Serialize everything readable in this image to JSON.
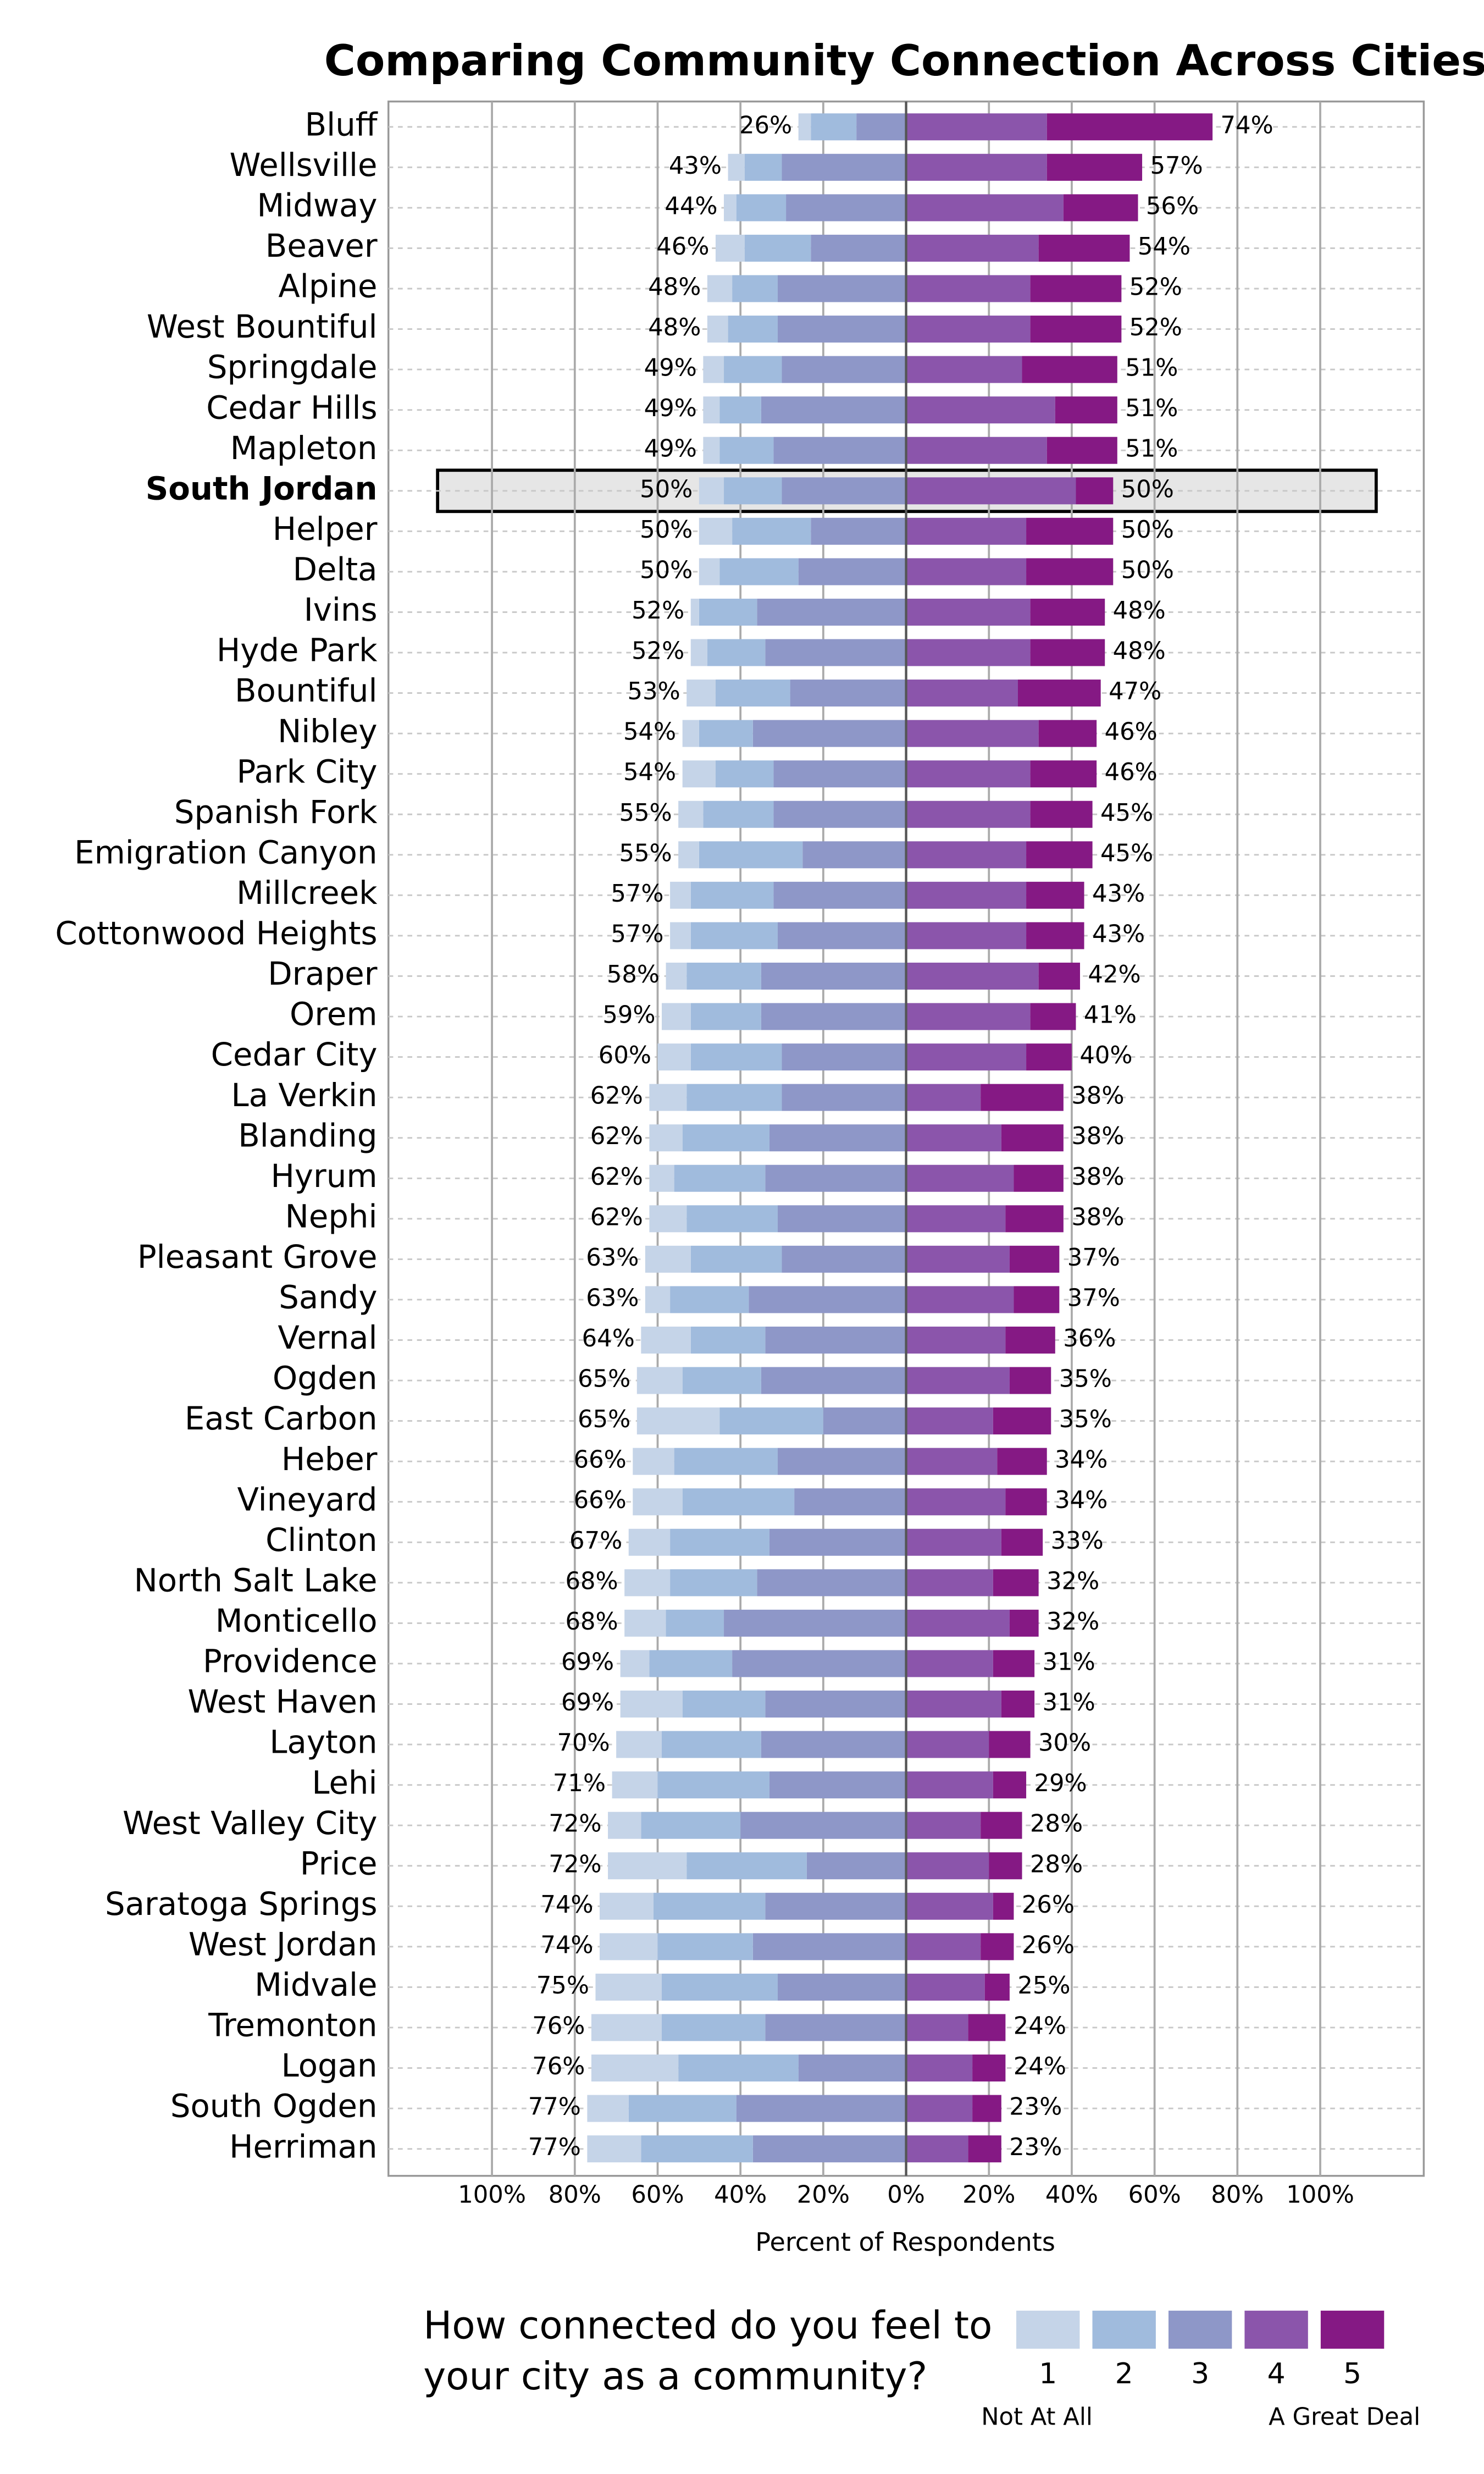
{
  "chart_data": {
    "type": "diverging-bar",
    "title": "Comparing Community Connection Across Cities",
    "x_label": "Percent of Respondents",
    "legend_title": [
      "How connected do you feel to",
      "your city as a community?"
    ],
    "legend_low": "Not At All",
    "legend_high": "A Great Deal",
    "highlight_index": 9,
    "grid": true,
    "xlim": [
      -125,
      125
    ],
    "xticks": [
      {
        "value": -100,
        "label": "100%"
      },
      {
        "value": -80,
        "label": "80%"
      },
      {
        "value": -60,
        "label": "60%"
      },
      {
        "value": -40,
        "label": "40%"
      },
      {
        "value": -20,
        "label": "20%"
      },
      {
        "value": 0,
        "label": "0%"
      },
      {
        "value": 20,
        "label": "20%"
      },
      {
        "value": 40,
        "label": "40%"
      },
      {
        "value": 60,
        "label": "60%"
      },
      {
        "value": 80,
        "label": "80%"
      },
      {
        "value": 100,
        "label": "100%"
      }
    ],
    "categories": [
      "Bluff",
      "Wellsville",
      "Midway",
      "Beaver",
      "Alpine",
      "West Bountiful",
      "Springdale",
      "Cedar Hills",
      "Mapleton",
      "South Jordan",
      "Helper",
      "Delta",
      "Ivins",
      "Hyde Park",
      "Bountiful",
      "Nibley",
      "Park City",
      "Spanish Fork",
      "Emigration Canyon",
      "Millcreek",
      "Cottonwood Heights",
      "Draper",
      "Orem",
      "Cedar City",
      "La Verkin",
      "Blanding",
      "Hyrum",
      "Nephi",
      "Pleasant Grove",
      "Sandy",
      "Vernal",
      "Ogden",
      "East Carbon",
      "Heber",
      "Vineyard",
      "Clinton",
      "North Salt Lake",
      "Monticello",
      "Providence",
      "West Haven",
      "Layton",
      "Lehi",
      "West Valley City",
      "Price",
      "Saratoga Springs",
      "West Jordan",
      "Midvale",
      "Tremonton",
      "Logan",
      "South Ogden",
      "Herriman"
    ],
    "series": [
      {
        "name": "1",
        "color": "#c5d4e8",
        "side": "left",
        "values": [
          3,
          4,
          3,
          7,
          6,
          5,
          5,
          4,
          4,
          6,
          8,
          5,
          2,
          4,
          7,
          4,
          8,
          6,
          5,
          5,
          5,
          5,
          7,
          8,
          9,
          8,
          6,
          9,
          11,
          6,
          12,
          11,
          20,
          10,
          12,
          10,
          11,
          10,
          7,
          15,
          11,
          11,
          8,
          19,
          13,
          14,
          16,
          17,
          21,
          10,
          13
        ]
      },
      {
        "name": "2",
        "color": "#a0bbdd",
        "side": "left",
        "values": [
          11,
          9,
          12,
          16,
          11,
          12,
          14,
          10,
          13,
          14,
          19,
          19,
          14,
          14,
          18,
          13,
          14,
          17,
          25,
          20,
          21,
          18,
          17,
          22,
          23,
          21,
          22,
          22,
          22,
          19,
          18,
          19,
          25,
          25,
          27,
          24,
          21,
          14,
          20,
          20,
          24,
          27,
          24,
          29,
          27,
          23,
          28,
          25,
          29,
          26,
          27
        ]
      },
      {
        "name": "3",
        "color": "#8e97c8",
        "side": "left",
        "values": [
          12,
          30,
          29,
          23,
          31,
          31,
          30,
          35,
          32,
          30,
          23,
          26,
          36,
          34,
          28,
          37,
          32,
          32,
          25,
          32,
          31,
          35,
          35,
          30,
          30,
          33,
          34,
          31,
          30,
          38,
          34,
          35,
          20,
          31,
          27,
          33,
          36,
          44,
          42,
          34,
          35,
          33,
          40,
          24,
          34,
          37,
          31,
          34,
          26,
          41,
          37
        ]
      },
      {
        "name": "4",
        "color": "#8b55ab",
        "side": "right",
        "values": [
          34,
          34,
          38,
          32,
          30,
          30,
          28,
          36,
          34,
          41,
          29,
          29,
          30,
          30,
          27,
          32,
          30,
          30,
          29,
          29,
          29,
          32,
          30,
          29,
          18,
          23,
          26,
          24,
          25,
          26,
          24,
          25,
          21,
          22,
          24,
          23,
          21,
          25,
          21,
          23,
          20,
          21,
          18,
          20,
          21,
          18,
          19,
          15,
          16,
          16,
          15
        ]
      },
      {
        "name": "5",
        "color": "#851984",
        "side": "right",
        "values": [
          40,
          23,
          18,
          22,
          22,
          22,
          23,
          15,
          17,
          9,
          21,
          21,
          18,
          18,
          20,
          14,
          16,
          15,
          16,
          14,
          14,
          10,
          11,
          11,
          20,
          15,
          12,
          14,
          12,
          11,
          12,
          10,
          14,
          12,
          10,
          10,
          11,
          7,
          10,
          8,
          10,
          8,
          10,
          8,
          5,
          8,
          6,
          9,
          8,
          7,
          8
        ]
      }
    ],
    "left_totals": {
      "values": [
        26,
        43,
        44,
        46,
        48,
        48,
        49,
        49,
        49,
        50,
        50,
        50,
        52,
        52,
        53,
        54,
        54,
        55,
        55,
        57,
        57,
        58,
        59,
        60,
        62,
        62,
        62,
        62,
        63,
        63,
        64,
        65,
        65,
        66,
        66,
        67,
        68,
        68,
        69,
        69,
        70,
        71,
        72,
        72,
        74,
        74,
        75,
        76,
        76,
        77,
        77
      ],
      "value_labels": [
        "26%",
        "43%",
        "44%",
        "46%",
        "48%",
        "48%",
        "49%",
        "49%",
        "49%",
        "50%",
        "50%",
        "50%",
        "52%",
        "52%",
        "53%",
        "54%",
        "54%",
        "55%",
        "55%",
        "57%",
        "57%",
        "58%",
        "59%",
        "60%",
        "62%",
        "62%",
        "62%",
        "62%",
        "63%",
        "63%",
        "64%",
        "65%",
        "65%",
        "66%",
        "66%",
        "67%",
        "68%",
        "68%",
        "69%",
        "69%",
        "70%",
        "71%",
        "72%",
        "72%",
        "74%",
        "74%",
        "75%",
        "76%",
        "76%",
        "77%",
        "77%"
      ]
    },
    "right_totals": {
      "values": [
        74,
        57,
        56,
        54,
        52,
        52,
        51,
        51,
        51,
        50,
        50,
        50,
        48,
        48,
        47,
        46,
        46,
        45,
        45,
        43,
        43,
        42,
        41,
        40,
        38,
        38,
        38,
        38,
        37,
        37,
        36,
        35,
        35,
        34,
        34,
        33,
        32,
        32,
        31,
        31,
        30,
        29,
        28,
        28,
        26,
        26,
        25,
        24,
        24,
        23,
        23
      ],
      "value_labels": [
        "74%",
        "57%",
        "56%",
        "54%",
        "52%",
        "52%",
        "51%",
        "51%",
        "51%",
        "50%",
        "50%",
        "50%",
        "48%",
        "48%",
        "47%",
        "46%",
        "46%",
        "45%",
        "45%",
        "43%",
        "43%",
        "42%",
        "41%",
        "40%",
        "38%",
        "38%",
        "38%",
        "38%",
        "37%",
        "37%",
        "36%",
        "35%",
        "35%",
        "34%",
        "34%",
        "33%",
        "32%",
        "32%",
        "31%",
        "31%",
        "30%",
        "29%",
        "28%",
        "28%",
        "26%",
        "26%",
        "25%",
        "24%",
        "24%",
        "23%",
        "23%"
      ]
    }
  }
}
